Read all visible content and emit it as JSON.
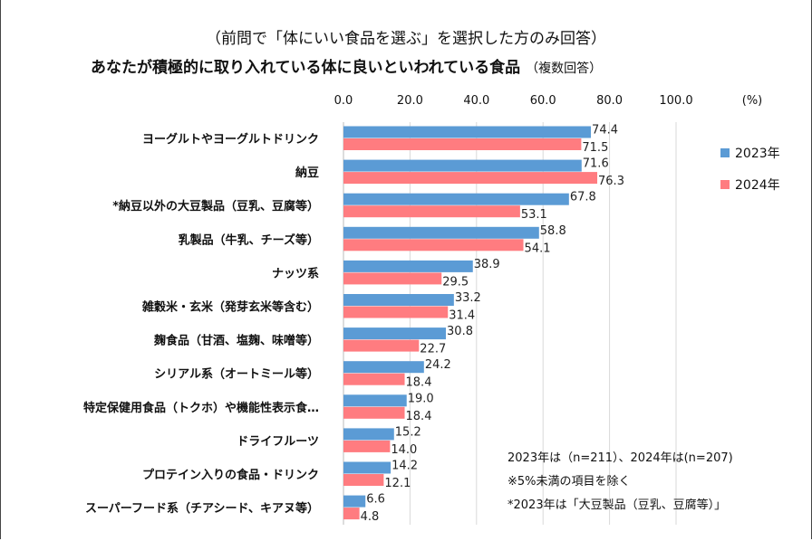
{
  "chart_data": {
    "type": "bar",
    "orientation": "horizontal",
    "subtitle": "（前問で「体にいい食品を選ぶ」を選択した方のみ回答）",
    "title": "あなたが積極的に取り入れている体に良いといわれている食品",
    "title_note": "（複数回答）",
    "unit_label": "(%)",
    "xlim": [
      0,
      100
    ],
    "xticks": [
      "0.0",
      "20.0",
      "40.0",
      "60.0",
      "80.0",
      "100.0"
    ],
    "grid": true,
    "legend_position": "right",
    "categories": [
      "ヨーグルトやヨーグルトドリンク",
      "納豆",
      "*納豆以外の大豆製品（豆乳、豆腐等）",
      "乳製品（牛乳、チーズ等）",
      "ナッツ系",
      "雑穀米・玄米（発芽玄米等含む）",
      "麹食品（甘酒、塩麹、味噌等）",
      "シリアル系（オートミール等）",
      "特定保健用食品（トクホ）や機能性表示食…",
      "ドライフルーツ",
      "プロテイン入りの食品・ドリンク",
      "スーパーフード系（チアシード、キアヌ等）"
    ],
    "series": [
      {
        "name": "2023年",
        "color": "#5B9BD5",
        "values": [
          74.4,
          71.6,
          67.8,
          58.8,
          38.9,
          33.2,
          30.8,
          24.2,
          19.0,
          15.2,
          14.2,
          6.6
        ]
      },
      {
        "name": "2024年",
        "color": "#FF7C80",
        "values": [
          71.5,
          76.3,
          53.1,
          54.1,
          29.5,
          31.4,
          22.7,
          18.4,
          18.4,
          14.0,
          12.1,
          4.8
        ]
      }
    ],
    "notes": [
      "2023年は（n=211）、2024年は(n=207)",
      "※5%未満の項目を除く",
      "*2023年は「大豆製品（豆乳、豆腐等）」"
    ]
  }
}
